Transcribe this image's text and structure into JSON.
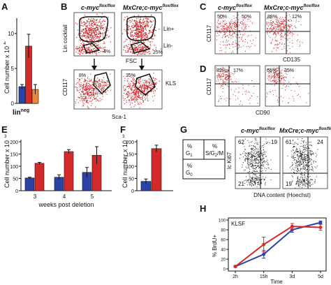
{
  "panels": {
    "A": {
      "label": "A",
      "ylabel": "Cell number x 10",
      "ylabel_exp": "4",
      "xlabel_main": "lin",
      "xlabel_sup": "neg",
      "ticks": [
        "0",
        "5",
        "10"
      ]
    },
    "B": {
      "label": "B",
      "col1": "c-myc",
      "col2_pre": "MxCre;c-myc",
      "sup": "flox/flox",
      "top_ylabel": "Lin cocktail",
      "top_xlabel": "FSC",
      "bottom_ylabel": "CD117",
      "bottom_xlabel": "Sca-1",
      "lin_plus": "Lin+",
      "lin_minus": "Lin-",
      "pct_top_1": "4%",
      "pct_top_2": "25%",
      "pct_bottom_1": "8%",
      "pct_bottom_2": "35%",
      "kls": "KLS"
    },
    "C": {
      "label": "C",
      "col1": "c-myc",
      "col2_pre": "MxCre;c-myc",
      "sup": "flox/flox",
      "ylabel": "CD117",
      "xlabel": "CD135",
      "q1a": "50%",
      "q1b": "50%",
      "q2a": "88%",
      "q2b": "12%"
    },
    "D": {
      "label": "D",
      "ylabel": "CD117",
      "xlabel": "CD90",
      "q1a": "83%",
      "q1b": "17%",
      "q2a": "65%",
      "q2b": "35%"
    },
    "E": {
      "label": "E",
      "ylabel": "Cell number x 10",
      "ylabel_exp": "3",
      "xlabel": "weeks post deletion",
      "ticks": [
        "0",
        "50",
        "100",
        "150",
        "200"
      ]
    },
    "F": {
      "label": "F",
      "ylabel": "Cell number x 10",
      "ylabel_exp": "3",
      "ticks": [
        "0",
        "50",
        "100",
        "150",
        "200"
      ]
    },
    "G": {
      "label": "G",
      "col1": "c-myc",
      "col2_pre": "MxCre;c-myc",
      "sup": "flox/flox",
      "ylabel": "Ic Ki67",
      "xlabel": "DNA content (Hoechst)",
      "legend_g1": "G",
      "legend_g1_sub": "1",
      "legend_sg2m": "S/G",
      "legend_sg2m_sub": "2",
      "legend_sg2m_end": "/M",
      "legend_g0": "G",
      "legend_g0_sub": "0",
      "legend_pct": "%",
      "p1_tl": "62",
      "p1_tr": "19",
      "p1_bl": "21",
      "p2_tl": "61",
      "p2_tr": "24",
      "p2_bl": "19"
    },
    "H": {
      "label": "H",
      "ylabel": "% BrdU+",
      "xlabel": "Time",
      "inset": "KLSF",
      "ticks": [
        "0",
        "20",
        "40",
        "60",
        "80",
        "100"
      ]
    }
  },
  "colors": {
    "blue": "#2c43a6",
    "red": "#d32a2a",
    "orange": "#e9893b",
    "dots": "#c62828",
    "gate": "#111111"
  },
  "chart_data": [
    {
      "panel": "A",
      "type": "bar",
      "categories": [
        "lin neg"
      ],
      "series": [
        {
          "color": "blue",
          "values": [
            2.4
          ],
          "err": [
            0.3
          ]
        },
        {
          "color": "red",
          "values": [
            8.2
          ],
          "err": [
            1.7
          ]
        },
        {
          "color": "orange",
          "values": [
            2.0
          ],
          "err": [
            0.7
          ]
        }
      ],
      "xlabel": "lin neg",
      "ylabel": "Cell number x 10^4",
      "ylim": [
        0,
        12
      ]
    },
    {
      "panel": "E",
      "type": "bar",
      "categories": [
        "3",
        "4",
        "5"
      ],
      "series": [
        {
          "color": "blue",
          "values": [
            52,
            55,
            75
          ],
          "err": [
            3,
            10,
            20
          ]
        },
        {
          "color": "red",
          "values": [
            112,
            160,
            145
          ],
          "err": [
            4,
            8,
            35
          ]
        }
      ],
      "xlabel": "weeks post deletion",
      "ylabel": "Cell number x 10^3",
      "ylim": [
        0,
        200
      ]
    },
    {
      "panel": "F",
      "type": "bar",
      "categories": [
        ""
      ],
      "series": [
        {
          "color": "blue",
          "values": [
            38
          ],
          "err": [
            10
          ]
        },
        {
          "color": "red",
          "values": [
            172
          ],
          "err": [
            14
          ]
        }
      ],
      "ylabel": "Cell number x 10^3",
      "ylim": [
        0,
        200
      ]
    },
    {
      "panel": "H",
      "type": "line",
      "x": [
        "2h",
        "15h",
        "3d",
        "5d"
      ],
      "series": [
        {
          "color": "blue",
          "values": [
            5,
            30,
            80,
            95
          ],
          "err": [
            2,
            8,
            5,
            3
          ]
        },
        {
          "color": "red",
          "values": [
            5,
            50,
            87,
            85
          ],
          "err": [
            2,
            15,
            6,
            6
          ]
        }
      ],
      "xlabel": "Time",
      "ylabel": "% BrdU+",
      "ylim": [
        0,
        100
      ]
    }
  ]
}
